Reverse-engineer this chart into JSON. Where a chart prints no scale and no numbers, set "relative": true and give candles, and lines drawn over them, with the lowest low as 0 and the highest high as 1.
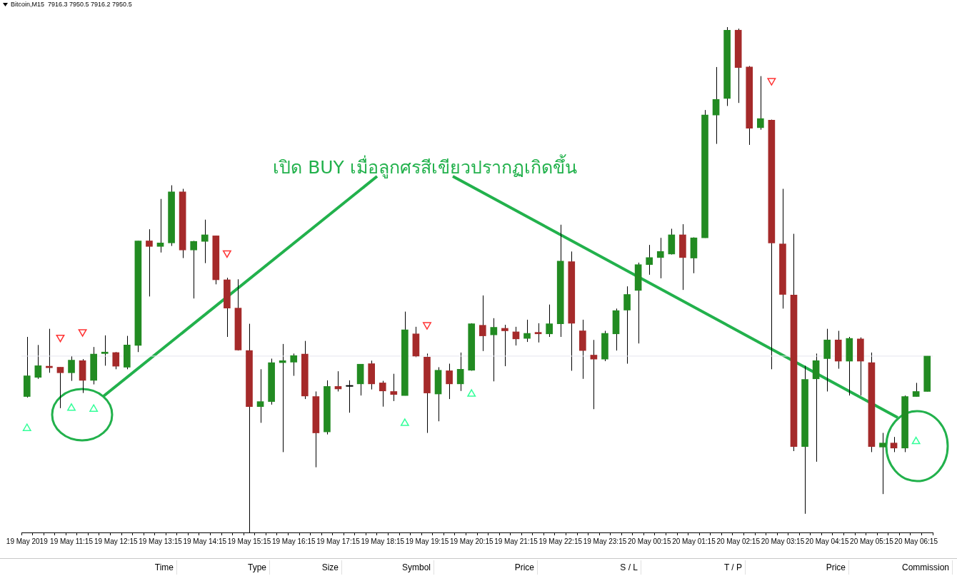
{
  "chart_data": {
    "type": "candlestick",
    "title": "Bitcoin,M15  7916.3 7950.5 7916.2 7950.5",
    "relative": true,
    "marker": "triangle",
    "categories": [
      "19 May 2019",
      null,
      null,
      null,
      "19 May 11:15",
      null,
      null,
      null,
      "19 May 12:15",
      null,
      null,
      null,
      "19 May 13:15",
      null,
      null,
      null,
      "19 May 14:15",
      null,
      null,
      null,
      "19 May 15:15",
      null,
      null,
      null,
      "19 May 16:15",
      null,
      null,
      null,
      "19 May 17:15",
      null,
      null,
      null,
      "19 May 18:15",
      null,
      null,
      null,
      "19 May 19:15",
      null,
      null,
      null,
      "19 May 20:15",
      null,
      null,
      null,
      "19 May 21:15",
      null,
      null,
      null,
      "19 May 22:15",
      null,
      null,
      null,
      "19 May 23:15",
      null,
      null,
      null,
      "20 May 00:15",
      null,
      null,
      null,
      "20 May 01:15",
      null,
      null,
      null,
      "20 May 02:15",
      null,
      null,
      null,
      "20 May 03:15",
      null,
      null,
      null,
      "20 May 04:15",
      null,
      null,
      null,
      "20 May 05:15",
      null,
      null,
      null,
      "20 May 06:15",
      null
    ],
    "ohlc": [
      [
        0.269,
        0.387,
        0.267,
        0.31
      ],
      [
        0.307,
        0.371,
        0.304,
        0.33
      ],
      [
        0.329,
        0.403,
        0.316,
        0.326
      ],
      [
        0.327,
        0.327,
        0.246,
        0.316
      ],
      [
        0.316,
        0.349,
        0.3,
        0.341
      ],
      [
        0.34,
        0.343,
        0.276,
        0.301
      ],
      [
        0.301,
        0.367,
        0.293,
        0.353
      ],
      [
        0.354,
        0.39,
        0.33,
        0.357
      ],
      [
        0.356,
        0.357,
        0.323,
        0.329
      ],
      [
        0.327,
        0.389,
        0.323,
        0.371
      ],
      [
        0.37,
        0.577,
        0.357,
        0.577
      ],
      [
        0.577,
        0.6,
        0.467,
        0.566
      ],
      [
        0.566,
        0.66,
        0.554,
        0.573
      ],
      [
        0.573,
        0.687,
        0.567,
        0.674
      ],
      [
        0.674,
        0.68,
        0.543,
        0.559
      ],
      [
        0.559,
        0.577,
        0.463,
        0.576
      ],
      [
        0.576,
        0.619,
        0.533,
        0.589
      ],
      [
        0.587,
        0.587,
        0.491,
        0.5
      ],
      [
        0.5,
        0.504,
        0.387,
        0.444
      ],
      [
        0.444,
        0.501,
        0.36,
        0.361
      ],
      [
        0.36,
        0.413,
        0,
        0.249
      ],
      [
        0.249,
        0.323,
        0.217,
        0.259
      ],
      [
        0.259,
        0.344,
        0.253,
        0.336
      ],
      [
        0.336,
        0.373,
        0.159,
        0.34
      ],
      [
        0.337,
        0.354,
        0.31,
        0.35
      ],
      [
        0.353,
        0.379,
        0.264,
        0.27
      ],
      [
        0.269,
        0.279,
        0.129,
        0.197
      ],
      [
        0.199,
        0.301,
        0.194,
        0.289
      ],
      [
        0.289,
        0.319,
        0.279,
        0.284
      ],
      [
        0.29,
        0.301,
        0.237,
        0.29
      ],
      [
        0.294,
        0.333,
        0.271,
        0.333
      ],
      [
        0.334,
        0.34,
        0.283,
        0.294
      ],
      [
        0.296,
        0.3,
        0.249,
        0.28
      ],
      [
        0.279,
        0.314,
        0.26,
        0.273
      ],
      [
        0.271,
        0.437,
        0.271,
        0.401
      ],
      [
        0.393,
        0.407,
        0.347,
        0.349
      ],
      [
        0.347,
        0.354,
        0.197,
        0.276
      ],
      [
        0.274,
        0.327,
        0.22,
        0.321
      ],
      [
        0.32,
        0.334,
        0.264,
        0.294
      ],
      [
        0.294,
        0.356,
        0.28,
        0.323
      ],
      [
        0.321,
        0.414,
        0.32,
        0.413
      ],
      [
        0.41,
        0.469,
        0.359,
        0.389
      ],
      [
        0.391,
        0.424,
        0.299,
        0.406
      ],
      [
        0.404,
        0.411,
        0.329,
        0.399
      ],
      [
        0.397,
        0.407,
        0.37,
        0.383
      ],
      [
        0.384,
        0.421,
        0.377,
        0.394
      ],
      [
        0.396,
        0.414,
        0.376,
        0.393
      ],
      [
        0.393,
        0.451,
        0.387,
        0.413
      ],
      [
        0.413,
        0.609,
        0.387,
        0.537
      ],
      [
        0.536,
        0.556,
        0.32,
        0.414
      ],
      [
        0.399,
        0.421,
        0.304,
        0.36
      ],
      [
        0.351,
        0.381,
        0.244,
        0.343
      ],
      [
        0.343,
        0.399,
        0.339,
        0.394
      ],
      [
        0.393,
        0.443,
        0.36,
        0.439
      ],
      [
        0.44,
        0.487,
        0.334,
        0.471
      ],
      [
        0.479,
        0.534,
        0.374,
        0.53
      ],
      [
        0.53,
        0.569,
        0.51,
        0.544
      ],
      [
        0.544,
        0.583,
        0.503,
        0.556
      ],
      [
        0.551,
        0.601,
        0.55,
        0.589
      ],
      [
        0.589,
        0.61,
        0.48,
        0.544
      ],
      [
        0.543,
        0.584,
        0.513,
        0.583
      ],
      [
        0.583,
        0.836,
        0.583,
        0.826
      ],
      [
        0.826,
        0.921,
        0.769,
        0.857
      ],
      [
        0.859,
        1,
        0.844,
        0.994
      ],
      [
        0.994,
        0.997,
        0.85,
        0.92
      ],
      [
        0.921,
        0.923,
        0.767,
        0.8
      ],
      [
        0.801,
        0.903,
        0.797,
        0.819
      ],
      [
        0.816,
        0.817,
        0.323,
        0.573
      ],
      [
        0.571,
        0.68,
        0.443,
        0.471
      ],
      [
        0.47,
        0.591,
        0.161,
        0.17
      ],
      [
        0.17,
        0.33,
        0.037,
        0.303
      ],
      [
        0.304,
        0.354,
        0.14,
        0.34
      ],
      [
        0.344,
        0.403,
        0.279,
        0.381
      ],
      [
        0.381,
        0.399,
        0.324,
        0.339
      ],
      [
        0.339,
        0.387,
        0.271,
        0.384
      ],
      [
        0.383,
        0.386,
        0.271,
        0.339
      ],
      [
        0.336,
        0.356,
        0.159,
        0.17
      ],
      [
        0.169,
        0.197,
        0.076,
        0.177
      ],
      [
        0.177,
        0.189,
        0.159,
        0.167
      ],
      [
        0.167,
        0.271,
        0.159,
        0.269
      ],
      [
        0.269,
        0.296,
        0.269,
        0.279
      ],
      [
        0.279,
        0.349,
        0.279,
        0.349
      ]
    ],
    "colors": [
      "#228b22",
      "#228b22",
      "#a52a2a",
      "#a52a2a",
      "#228b22",
      "#a52a2a",
      "#228b22",
      "#228b22",
      "#a52a2a",
      "#228b22",
      "#228b22",
      "#a52a2a",
      "#228b22",
      "#228b22",
      "#a52a2a",
      "#228b22",
      "#228b22",
      "#a52a2a",
      "#a52a2a",
      "#a52a2a",
      "#a52a2a",
      "#228b22",
      "#228b22",
      "#228b22",
      "#228b22",
      "#a52a2a",
      "#a52a2a",
      "#228b22",
      "#a52a2a",
      "#000000",
      "#228b22",
      "#a52a2a",
      "#a52a2a",
      "#a52a2a",
      "#228b22",
      "#a52a2a",
      "#a52a2a",
      "#228b22",
      "#a52a2a",
      "#228b22",
      "#228b22",
      "#a52a2a",
      "#228b22",
      "#a52a2a",
      "#a52a2a",
      "#228b22",
      "#a52a2a",
      "#228b22",
      "#228b22",
      "#a52a2a",
      "#a52a2a",
      "#a52a2a",
      "#228b22",
      "#228b22",
      "#228b22",
      "#228b22",
      "#228b22",
      "#228b22",
      "#228b22",
      "#a52a2a",
      "#228b22",
      "#228b22",
      "#228b22",
      "#228b22",
      "#a52a2a",
      "#a52a2a",
      "#228b22",
      "#a52a2a",
      "#a52a2a",
      "#a52a2a",
      "#228b22",
      "#228b22",
      "#228b22",
      "#a52a2a",
      "#228b22",
      "#a52a2a",
      "#a52a2a",
      "#228b22",
      "#a52a2a",
      "#228b22",
      "#228b22",
      "#228b22"
    ],
    "series": [
      {
        "type": "scatter",
        "color": "#33ff99",
        "values": [
          0.206,
          null,
          null,
          null,
          0.246,
          null,
          0.244,
          null,
          null,
          null,
          null,
          null,
          null,
          null,
          null,
          null,
          null,
          null,
          null,
          null,
          null,
          null,
          null,
          null,
          null,
          null,
          null,
          null,
          null,
          null,
          null,
          null,
          null,
          null,
          0.216,
          null,
          null,
          null,
          null,
          null,
          0.274,
          null,
          null,
          null,
          null,
          null,
          null,
          null,
          null,
          null,
          null,
          null,
          null,
          null,
          null,
          null,
          null,
          null,
          null,
          null,
          null,
          null,
          null,
          null,
          null,
          null,
          null,
          null,
          null,
          null,
          null,
          null,
          null,
          null,
          null,
          null,
          null,
          null,
          null,
          null,
          0.18,
          null
        ]
      },
      {
        "type": "scatter",
        "color": "#ff3333",
        "values": [
          null,
          null,
          null,
          0.386,
          null,
          0.397,
          null,
          null,
          null,
          null,
          null,
          null,
          null,
          null,
          null,
          null,
          null,
          null,
          0.553,
          null,
          null,
          null,
          null,
          null,
          null,
          null,
          null,
          null,
          null,
          null,
          null,
          null,
          null,
          null,
          null,
          null,
          0.411,
          null,
          null,
          null,
          null,
          null,
          null,
          null,
          null,
          null,
          null,
          null,
          null,
          null,
          null,
          null,
          null,
          null,
          null,
          null,
          null,
          null,
          null,
          null,
          null,
          null,
          null,
          null,
          null,
          null,
          null,
          0.894,
          null,
          null,
          null,
          null,
          null,
          null,
          null,
          null,
          null,
          null,
          null,
          null,
          null,
          null
        ]
      }
    ],
    "ref_lines": [
      {
        "axis": "y",
        "value": 0.349,
        "color": "#e4e4ee"
      }
    ],
    "annotations": [
      "เปิด BUY เมื่อลูกศรสีเขียวปรากฏเกิดขึ้น",
      "Time",
      "Type",
      "Size",
      "Symbol",
      "Price",
      "S / L",
      "T / P",
      "Price",
      "Commission"
    ]
  }
}
